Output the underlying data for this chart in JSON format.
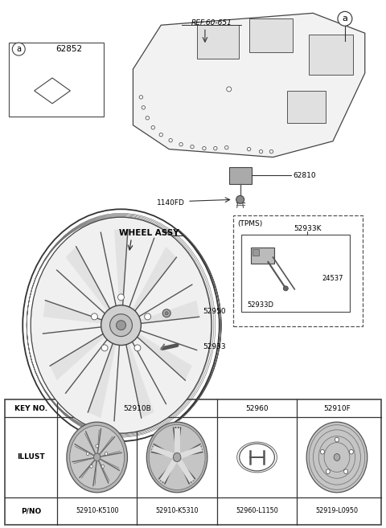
{
  "bg_color": "#ffffff",
  "fig_width": 4.8,
  "fig_height": 6.57,
  "dpi": 100,
  "line_color": "#333333",
  "text_color": "#000000",
  "labels": {
    "ref": "REF.60-651",
    "part_a": "a",
    "part_62852": "62852",
    "wheel_assy": "WHEEL ASSY",
    "part_52950": "52950",
    "part_52933": "52933",
    "part_1140fd": "1140FD",
    "part_62810": "62810",
    "tpms": "(TPMS)",
    "part_52933k": "52933K",
    "part_24537": "24537",
    "part_52933d": "52933D"
  },
  "table": {
    "key_row": [
      "KEY NO.",
      "52910B",
      "52960",
      "52910F"
    ],
    "illust_row": "ILLUST",
    "pno_row": [
      "P/NO",
      "52910-K5100",
      "52910-K5310",
      "52960-L1150",
      "52919-L0950"
    ]
  }
}
